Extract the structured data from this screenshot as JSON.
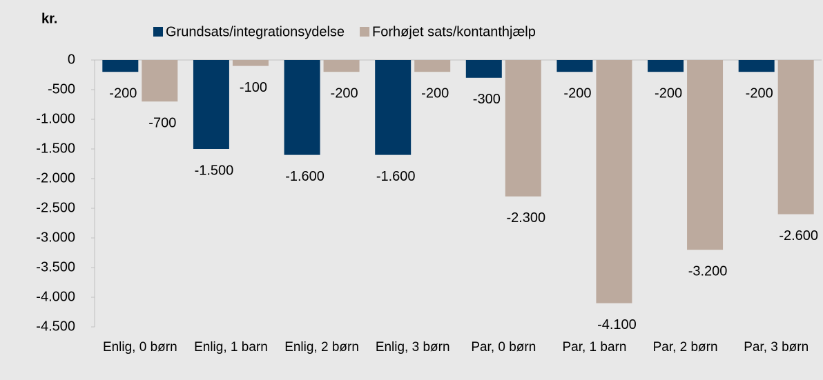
{
  "chart_data": {
    "type": "bar",
    "y_label": "kr.",
    "categories": [
      "Enlig, 0 børn",
      "Enlig, 1 barn",
      "Enlig, 2 børn",
      "Enlig, 3 børn",
      "Par, 0 børn",
      "Par, 1 barn",
      "Par, 2 børn",
      "Par, 3 børn"
    ],
    "series": [
      {
        "name": "Grundsats/integrationsydelse",
        "color": "#003865",
        "values": [
          -200,
          -1500,
          -1600,
          -1600,
          -300,
          -200,
          -200,
          -200
        ],
        "value_labels": [
          "-200",
          "-1.500",
          "-1.600",
          "-1.600",
          "-300",
          "-200",
          "-200",
          "-200"
        ]
      },
      {
        "name": "Forhøjet sats/kontanthjælp",
        "color": "#bcaa9e",
        "values": [
          -700,
          -100,
          -200,
          -200,
          -2300,
          -4100,
          -3200,
          -2600
        ],
        "value_labels": [
          "-700",
          "-100",
          "-200",
          "-200",
          "-2.300",
          "-4.100",
          "-3.200",
          "-2.600"
        ]
      }
    ],
    "ylim": [
      -4500,
      0
    ],
    "yticks": [
      0,
      -500,
      {
        "value": -1000,
        "label": "-1.000"
      },
      {
        "value": -1500,
        "label": "-1.500"
      },
      {
        "value": -2000,
        "label": "-2.000"
      },
      {
        "value": -2500,
        "label": "-2.500"
      },
      {
        "value": -3000,
        "label": "-3.000"
      },
      {
        "value": -3500,
        "label": "-3.500"
      },
      {
        "value": -4000,
        "label": "-4.000"
      },
      {
        "value": -4500,
        "label": "-4.500"
      }
    ],
    "legend": "top",
    "grid": false
  }
}
